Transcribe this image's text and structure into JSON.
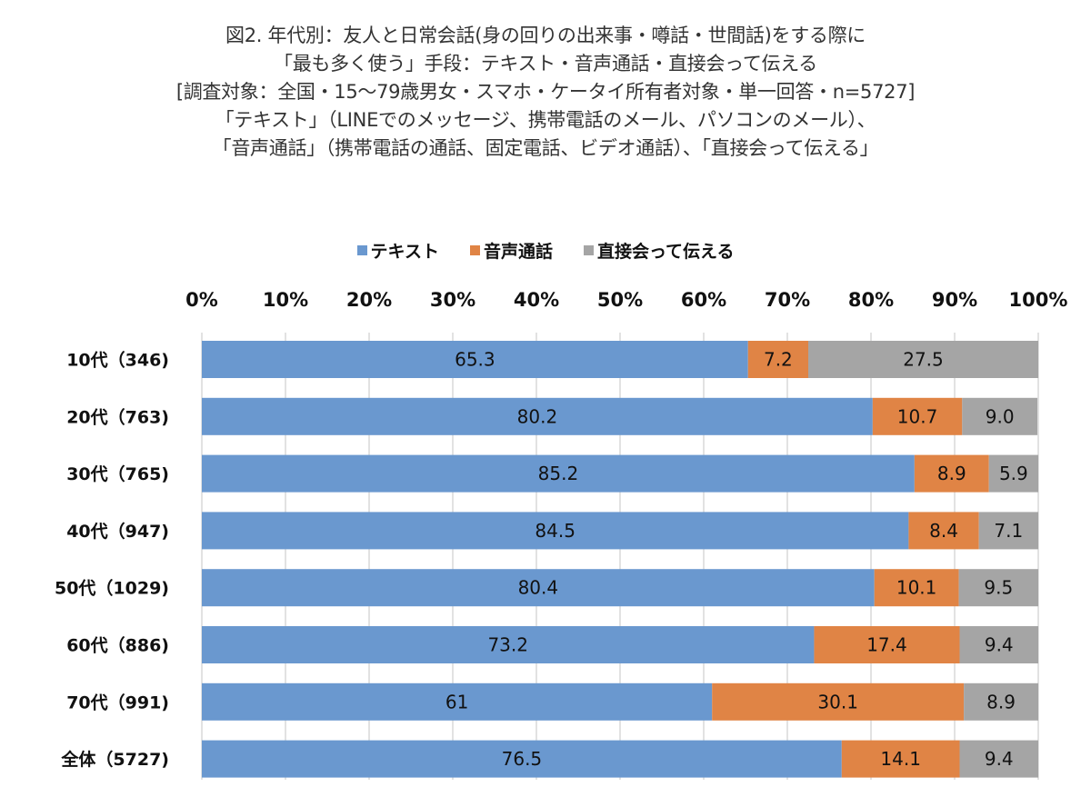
{
  "title_lines": [
    "図2. 年代別：友人と日常会話(身の回りの出来事・噂話・世間話)をする際に",
    "「最も多く使う」手段：テキスト・音声通話・直接会って伝える",
    "[調査対象：全国・15～79歳男女・スマホ・ケータイ所有者対象・単一回答・n=5727]",
    "「テキスト」（LINEでのメッセージ、携帯電話のメール、パソコンのメール）、",
    "「音声通話」（携帯電話の通話、固定電話、ビデオ通話）、「直接会って伝える」"
  ],
  "chart_data": {
    "type": "bar",
    "orientation": "horizontal",
    "stacked": true,
    "title": "図2. 年代別：友人と日常会話(身の回りの出来事・噂話・世間話)をする際に「最も多く使う」手段：テキスト・音声通話・直接会って伝える",
    "categories": [
      "10代（346)",
      "20代（763)",
      "30代（765)",
      "40代（947)",
      "50代（1029)",
      "60代（886)",
      "70代（991)",
      "全体（5727)"
    ],
    "series": [
      {
        "name": "テキスト",
        "color": "#6a98cf",
        "values": [
          65.3,
          80.2,
          85.2,
          84.5,
          80.4,
          73.2,
          61,
          76.5
        ],
        "labels": [
          "65.3",
          "80.2",
          "85.2",
          "84.5",
          "80.4",
          "73.2",
          "61",
          "76.5"
        ]
      },
      {
        "name": "音声通話",
        "color": "#e08445",
        "values": [
          7.2,
          10.7,
          8.9,
          8.4,
          10.1,
          17.4,
          30.1,
          14.1
        ],
        "labels": [
          "7.2",
          "10.7",
          "8.9",
          "8.4",
          "10.1",
          "17.4",
          "30.1",
          "14.1"
        ]
      },
      {
        "name": "直接会って伝える",
        "color": "#a5a5a5",
        "values": [
          27.5,
          9.0,
          5.9,
          7.1,
          9.5,
          9.4,
          8.9,
          9.4
        ],
        "labels": [
          "27.5",
          "9.0",
          "5.9",
          "7.1",
          "9.5",
          "9.4",
          "8.9",
          "9.4"
        ]
      }
    ],
    "xlim": [
      0,
      100
    ],
    "x_ticks": [
      "0%",
      "10%",
      "20%",
      "30%",
      "40%",
      "50%",
      "60%",
      "70%",
      "80%",
      "90%",
      "100%"
    ],
    "x_axis_position": "top",
    "grid": true,
    "legend": "top-center",
    "xlabel": "",
    "ylabel": ""
  }
}
